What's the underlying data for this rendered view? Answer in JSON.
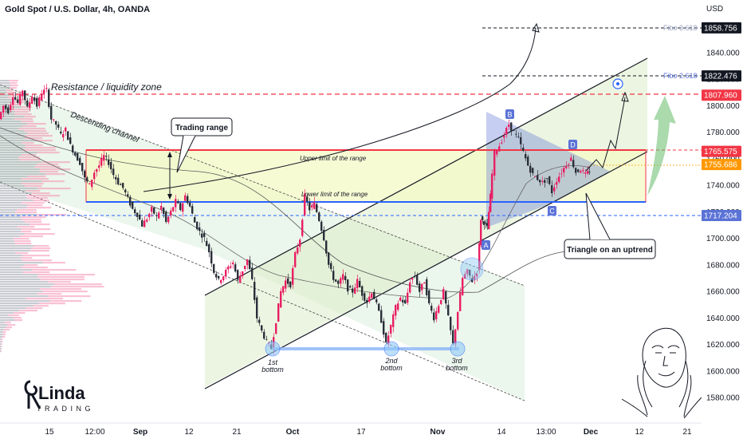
{
  "header": {
    "symbol_title": "Gold Spot / U.S. Dollar, 4h, OANDA",
    "currency": "USD"
  },
  "colors": {
    "up": "#e91e63",
    "down": "#2a2e39",
    "resistance": "#f23645",
    "support": "#2962ff",
    "fibo_text": "#9aa4c1",
    "green_zone": "#c8e6c9",
    "yellow_zone": "#fff9c4",
    "triangle": "#5b73d6"
  },
  "chart_data": {
    "type": "candlestick",
    "title": "Gold Spot / U.S. Dollar, 4h, OANDA",
    "ylabel": "USD",
    "ylim": [
      1570,
      1870
    ],
    "y_ticks": [
      1580,
      1600,
      1620,
      1640,
      1660,
      1680,
      1700,
      1720,
      1740,
      1760,
      1780,
      1800,
      1820,
      1840
    ],
    "x_ticks": [
      "15",
      "12:00",
      "Sep",
      "12",
      "21",
      "Oct",
      "17",
      "Nov",
      "14",
      "13:00",
      "Dec",
      "12",
      "21"
    ],
    "price_labels": [
      {
        "label": "1858.756",
        "value": 1858.756,
        "style": "dark"
      },
      {
        "label": "1822.476",
        "value": 1822.476,
        "style": "dark"
      },
      {
        "label": "1807.960",
        "value": 1807.96,
        "style": "red"
      },
      {
        "label": "1765.575",
        "value": 1765.575,
        "style": "red"
      },
      {
        "label": "1755.686",
        "value": 1755.686,
        "style": "orange"
      },
      {
        "label": "1717.204",
        "value": 1717.204,
        "style": "blue"
      }
    ],
    "series_path": [
      [
        0,
        1790
      ],
      [
        6,
        1800
      ],
      [
        12,
        1796
      ],
      [
        18,
        1808
      ],
      [
        24,
        1802
      ],
      [
        30,
        1812
      ],
      [
        36,
        1798
      ],
      [
        42,
        1808
      ],
      [
        48,
        1800
      ],
      [
        54,
        1810
      ],
      [
        60,
        1812
      ],
      [
        66,
        1790
      ],
      [
        72,
        1786
      ],
      [
        78,
        1778
      ],
      [
        84,
        1782
      ],
      [
        90,
        1770
      ],
      [
        96,
        1763
      ],
      [
        102,
        1757
      ],
      [
        108,
        1745
      ],
      [
        114,
        1740
      ],
      [
        120,
        1750
      ],
      [
        126,
        1755
      ],
      [
        132,
        1762
      ],
      [
        138,
        1757
      ],
      [
        144,
        1748
      ],
      [
        150,
        1742
      ],
      [
        156,
        1738
      ],
      [
        162,
        1730
      ],
      [
        168,
        1722
      ],
      [
        174,
        1718
      ],
      [
        180,
        1710
      ],
      [
        186,
        1715
      ],
      [
        192,
        1722
      ],
      [
        198,
        1716
      ],
      [
        204,
        1724
      ],
      [
        210,
        1712
      ],
      [
        216,
        1720
      ],
      [
        222,
        1728
      ],
      [
        228,
        1722
      ],
      [
        234,
        1732
      ],
      [
        240,
        1724
      ],
      [
        246,
        1712
      ],
      [
        252,
        1705
      ],
      [
        258,
        1700
      ],
      [
        264,
        1690
      ],
      [
        270,
        1675
      ],
      [
        276,
        1668
      ],
      [
        282,
        1672
      ],
      [
        288,
        1678
      ],
      [
        294,
        1682
      ],
      [
        300,
        1668
      ],
      [
        306,
        1676
      ],
      [
        312,
        1684
      ],
      [
        318,
        1668
      ],
      [
        324,
        1640
      ],
      [
        330,
        1630
      ],
      [
        336,
        1622
      ],
      [
        342,
        1617
      ],
      [
        348,
        1638
      ],
      [
        354,
        1660
      ],
      [
        360,
        1668
      ],
      [
        366,
        1665
      ],
      [
        372,
        1688
      ],
      [
        378,
        1700
      ],
      [
        384,
        1732
      ],
      [
        390,
        1722
      ],
      [
        396,
        1726
      ],
      [
        402,
        1714
      ],
      [
        408,
        1700
      ],
      [
        414,
        1680
      ],
      [
        420,
        1670
      ],
      [
        426,
        1665
      ],
      [
        432,
        1672
      ],
      [
        438,
        1662
      ],
      [
        444,
        1660
      ],
      [
        450,
        1668
      ],
      [
        456,
        1658
      ],
      [
        462,
        1652
      ],
      [
        468,
        1660
      ],
      [
        474,
        1650
      ],
      [
        480,
        1638
      ],
      [
        486,
        1620
      ],
      [
        492,
        1634
      ],
      [
        498,
        1648
      ],
      [
        504,
        1655
      ],
      [
        510,
        1650
      ],
      [
        516,
        1668
      ],
      [
        522,
        1672
      ],
      [
        528,
        1660
      ],
      [
        534,
        1668
      ],
      [
        540,
        1650
      ],
      [
        546,
        1640
      ],
      [
        552,
        1650
      ],
      [
        558,
        1660
      ],
      [
        564,
        1640
      ],
      [
        570,
        1620
      ],
      [
        576,
        1645
      ],
      [
        582,
        1670
      ],
      [
        588,
        1675
      ],
      [
        594,
        1668
      ],
      [
        600,
        1675
      ],
      [
        604,
        1715
      ],
      [
        608,
        1712
      ],
      [
        612,
        1708
      ],
      [
        616,
        1732
      ],
      [
        622,
        1765
      ],
      [
        628,
        1770
      ],
      [
        634,
        1778
      ],
      [
        640,
        1786
      ],
      [
        646,
        1780
      ],
      [
        652,
        1775
      ],
      [
        658,
        1765
      ],
      [
        664,
        1755
      ],
      [
        670,
        1748
      ],
      [
        676,
        1745
      ],
      [
        682,
        1742
      ],
      [
        688,
        1745
      ],
      [
        694,
        1735
      ],
      [
        700,
        1744
      ],
      [
        706,
        1750
      ],
      [
        712,
        1756
      ],
      [
        718,
        1760
      ],
      [
        724,
        1750
      ],
      [
        730,
        1752
      ],
      [
        736,
        1748
      ],
      [
        740,
        1751
      ]
    ],
    "annotations": {
      "resistance_zone": "Resistance / liquidity zone",
      "descending_channel": "Descending channel",
      "trading_range": "Trading range",
      "upper_limit": "Upper limit of the range",
      "lower_limit": "Lower limit of the range",
      "triangle": "Triangle on an uptrend",
      "fibo_3618": "Fibo 3.618",
      "fibo_2618": "Fibo 2.618",
      "bottom_1": [
        "1st",
        "bottom"
      ],
      "bottom_2": [
        "2nd",
        "bottom"
      ],
      "bottom_3": [
        "3rd",
        "bottom"
      ],
      "point_a": "A",
      "point_b": "B",
      "point_c": "C",
      "point_d": "D"
    },
    "logo_text": {
      "main": "Linda",
      "sub": "TRADING"
    }
  }
}
